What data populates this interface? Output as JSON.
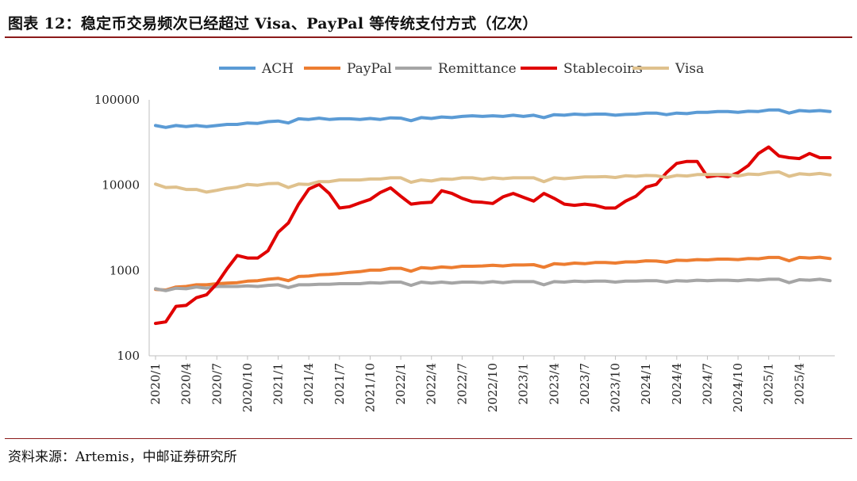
{
  "title": "图表 12：稳定币交易频次已经超过 Visa、PayPal 等传统支付方式（亿次）",
  "source": "资料来源：Artemis，中邮证券研究所",
  "chart_data": {
    "type": "line",
    "title": "图表 12：稳定币交易频次已经超过 Visa、PayPal 等传统支付方式（亿次）",
    "y_scale": "log",
    "ylim": [
      100,
      100000
    ],
    "y_ticks": [
      "100",
      "1000",
      "10000",
      "100000"
    ],
    "x_ticks": [
      "2020/1",
      "2020/4",
      "2020/7",
      "2020/10",
      "2021/1",
      "2021/4",
      "2021/7",
      "2021/10",
      "2022/1",
      "2022/4",
      "2022/7",
      "2022/10",
      "2023/1",
      "2023/4",
      "2023/7",
      "2023/10",
      "2024/1",
      "2024/4",
      "2024/7",
      "2024/10",
      "2025/1",
      "2025/4"
    ],
    "x_start": "2020/1",
    "x_end": "2025/6",
    "legend_position": "top",
    "series": [
      {
        "name": "ACH",
        "color": "#5b9bd5",
        "values": [
          50000,
          47500,
          50000,
          48500,
          50000,
          48500,
          50000,
          51500,
          51500,
          53500,
          53000,
          55500,
          56500,
          53500,
          60000,
          59000,
          61000,
          59000,
          60000,
          60000,
          59000,
          60500,
          59000,
          61500,
          61000,
          57000,
          62000,
          60500,
          63000,
          62000,
          64000,
          65000,
          64000,
          65000,
          64000,
          66000,
          64000,
          66000,
          62000,
          67000,
          66000,
          68000,
          67000,
          68000,
          68000,
          66000,
          67500,
          68000,
          70000,
          70000,
          67000,
          70000,
          69000,
          71500,
          71500,
          73000,
          73000,
          71500,
          73500,
          73000,
          76000,
          76000,
          70000,
          75000,
          73500,
          75000,
          73000
        ]
      },
      {
        "name": "PayPal",
        "color": "#ed7d31",
        "values": [
          600,
          590,
          640,
          650,
          680,
          680,
          700,
          710,
          720,
          750,
          760,
          790,
          810,
          760,
          850,
          860,
          890,
          900,
          920,
          950,
          970,
          1010,
          1010,
          1060,
          1060,
          980,
          1080,
          1060,
          1100,
          1080,
          1120,
          1120,
          1130,
          1150,
          1130,
          1160,
          1160,
          1170,
          1090,
          1200,
          1180,
          1220,
          1200,
          1240,
          1240,
          1220,
          1260,
          1260,
          1300,
          1290,
          1250,
          1320,
          1310,
          1340,
          1330,
          1360,
          1360,
          1340,
          1380,
          1370,
          1420,
          1420,
          1300,
          1420,
          1400,
          1430,
          1380
        ]
      },
      {
        "name": "Remittance",
        "color": "#a5a5a5",
        "values": [
          610,
          580,
          620,
          610,
          640,
          620,
          650,
          650,
          650,
          660,
          650,
          670,
          680,
          630,
          680,
          680,
          690,
          690,
          700,
          700,
          700,
          720,
          710,
          730,
          730,
          670,
          730,
          710,
          730,
          710,
          730,
          730,
          720,
          740,
          720,
          740,
          740,
          740,
          680,
          740,
          730,
          750,
          740,
          750,
          750,
          730,
          750,
          750,
          760,
          760,
          730,
          760,
          750,
          770,
          760,
          770,
          770,
          760,
          780,
          770,
          790,
          790,
          720,
          780,
          770,
          790,
          760
        ]
      },
      {
        "name": "Stablecoins",
        "color": "#e00000",
        "values": [
          240,
          250,
          380,
          390,
          480,
          520,
          700,
          1050,
          1500,
          1400,
          1400,
          1700,
          2800,
          3600,
          6000,
          9000,
          10200,
          8000,
          5400,
          5600,
          6200,
          6800,
          8200,
          9300,
          7400,
          6000,
          6200,
          6300,
          8600,
          8000,
          7000,
          6400,
          6300,
          6100,
          7300,
          8000,
          7200,
          6500,
          8000,
          7000,
          6000,
          5800,
          6000,
          5800,
          5400,
          5400,
          6500,
          7400,
          9500,
          10200,
          14000,
          18000,
          19000,
          19000,
          12500,
          13000,
          12500,
          14000,
          17000,
          23500,
          28000,
          22000,
          21000,
          20500,
          23500,
          21000,
          21000
        ]
      },
      {
        "name": "Visa",
        "color": "#dfc18d",
        "values": [
          10300,
          9400,
          9500,
          8900,
          8900,
          8300,
          8700,
          9200,
          9500,
          10200,
          10000,
          10400,
          10500,
          9400,
          10300,
          10200,
          11000,
          11000,
          11500,
          11500,
          11500,
          11800,
          11800,
          12200,
          12200,
          10800,
          11500,
          11200,
          11800,
          11700,
          12200,
          12200,
          11700,
          12200,
          11900,
          12200,
          12200,
          12200,
          11000,
          12200,
          11900,
          12200,
          12500,
          12500,
          12600,
          12300,
          12900,
          12700,
          13000,
          12900,
          12300,
          13000,
          12800,
          13300,
          13300,
          13300,
          13300,
          12800,
          13500,
          13300,
          14000,
          14300,
          12700,
          13600,
          13300,
          13700,
          13200
        ]
      }
    ]
  }
}
